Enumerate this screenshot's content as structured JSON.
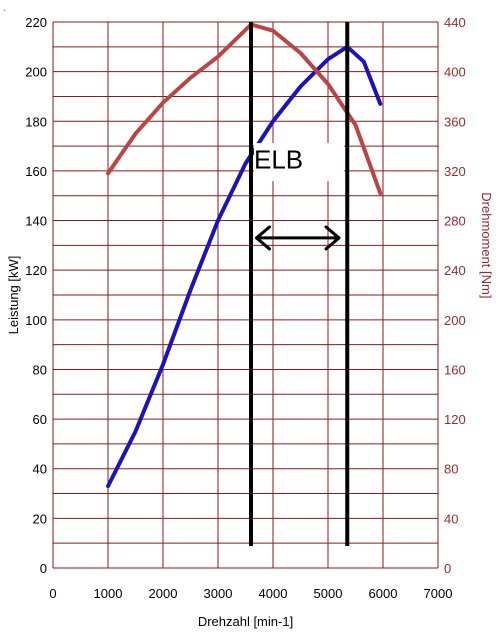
{
  "chart_data": {
    "type": "line",
    "xlabel": "Drehzahl [min-1]",
    "ylabel": "Leistung [kW]",
    "y2label": "Drehmoment [Nm]",
    "xlim": [
      0,
      7000
    ],
    "ylim": [
      0,
      220
    ],
    "y2lim": [
      0,
      440
    ],
    "grid": true,
    "x_ticks": [
      0,
      1000,
      2000,
      3000,
      4000,
      5000,
      6000,
      7000
    ],
    "y_ticks": [
      0,
      20,
      40,
      60,
      80,
      100,
      120,
      140,
      160,
      180,
      200,
      220
    ],
    "y2_ticks": [
      0,
      40,
      80,
      120,
      160,
      200,
      240,
      280,
      320,
      360,
      400,
      440
    ],
    "colors": {
      "power": "#1c14b4",
      "torque": "#bb4444",
      "grid": "#8b1a1a",
      "y2_labels": "#9b2a2a"
    },
    "series": [
      {
        "key": "power",
        "axis": "left",
        "points": [
          [
            1000,
            33
          ],
          [
            1500,
            55
          ],
          [
            2000,
            82
          ],
          [
            2500,
            112
          ],
          [
            3000,
            140
          ],
          [
            3500,
            163
          ],
          [
            4000,
            180
          ],
          [
            4500,
            194
          ],
          [
            5000,
            205
          ],
          [
            5350,
            210
          ],
          [
            5650,
            204
          ],
          [
            5950,
            187
          ]
        ]
      },
      {
        "key": "torque",
        "axis": "right",
        "points": [
          [
            1000,
            318
          ],
          [
            1500,
            350
          ],
          [
            2000,
            375
          ],
          [
            2500,
            395
          ],
          [
            3000,
            412
          ],
          [
            3600,
            438
          ],
          [
            4000,
            433
          ],
          [
            4500,
            415
          ],
          [
            5000,
            390
          ],
          [
            5500,
            357
          ],
          [
            5950,
            302
          ]
        ]
      }
    ],
    "vertical_lines": [
      3600,
      5350
    ],
    "annotations": {
      "label": "ELB",
      "arrow_from": 3700,
      "arrow_to": 5200,
      "arrow_level": 133
    }
  }
}
